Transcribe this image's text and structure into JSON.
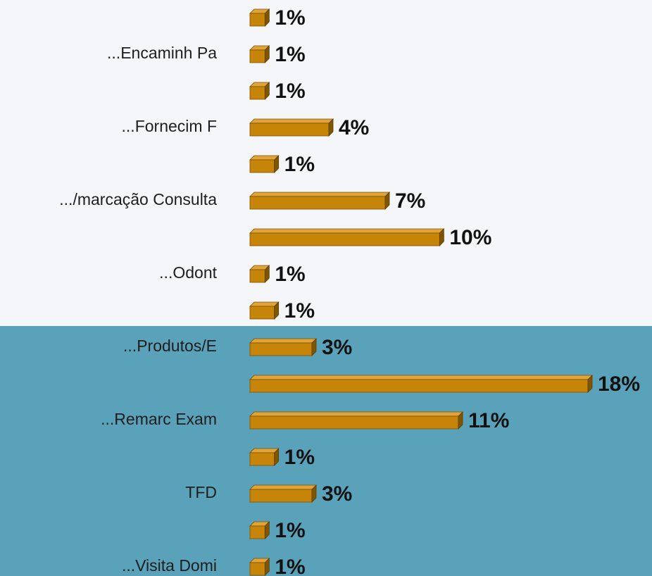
{
  "chart_data": {
    "type": "bar",
    "orientation": "horizontal",
    "categories": [
      null,
      "...Encaminh Pa",
      null,
      "...Fornecim F",
      null,
      ".../marcação Consulta",
      null,
      "...Odont",
      null,
      "...Produtos/E",
      null,
      "...Remarc Exam",
      null,
      "TFD",
      null,
      "...Visita Domi"
    ],
    "values": [
      0.8,
      0.8,
      0.8,
      4.2,
      1.3,
      7.2,
      10.1,
      0.8,
      1.3,
      3.3,
      18,
      11.1,
      1.3,
      3.3,
      0.8,
      0.8
    ],
    "value_labels": [
      "1%",
      "1%",
      "1%",
      "4%",
      "1%",
      "7%",
      "10%",
      "1%",
      "1%",
      "3%",
      "18%",
      "11%",
      "1%",
      "3%",
      "1%",
      "1%"
    ],
    "color": "#c68508"
  }
}
